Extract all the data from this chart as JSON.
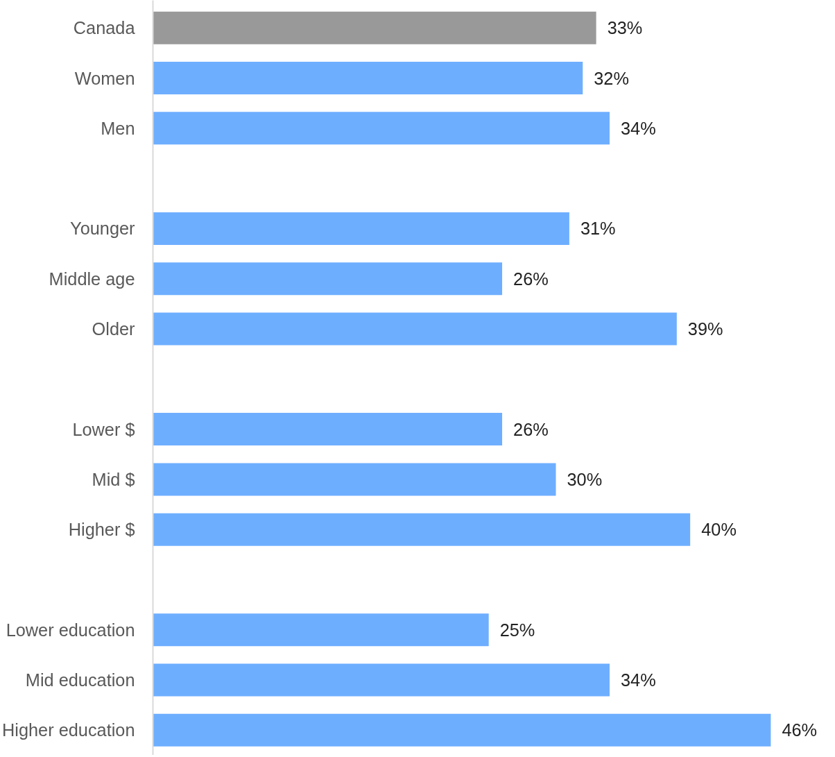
{
  "chart_data": {
    "type": "bar",
    "orientation": "horizontal",
    "categories": [
      "Canada",
      "Women",
      "Men",
      null,
      "Younger",
      "Middle age",
      "Older",
      null,
      "Lower $",
      "Mid $",
      "Higher $",
      null,
      "Lower education",
      "Mid education",
      "Higher education"
    ],
    "values": [
      33,
      32,
      34,
      null,
      31,
      26,
      39,
      null,
      26,
      30,
      40,
      null,
      25,
      34,
      46
    ],
    "value_labels": [
      "33%",
      "32%",
      "34%",
      null,
      "31%",
      "26%",
      "39%",
      null,
      "26%",
      "30%",
      "40%",
      null,
      "25%",
      "34%",
      "46%"
    ],
    "colors": [
      "#999999",
      "#6eaeff",
      "#6eaeff",
      null,
      "#6eaeff",
      "#6eaeff",
      "#6eaeff",
      null,
      "#6eaeff",
      "#6eaeff",
      "#6eaeff",
      null,
      "#6eaeff",
      "#6eaeff",
      "#6eaeff"
    ],
    "grid": false
  }
}
